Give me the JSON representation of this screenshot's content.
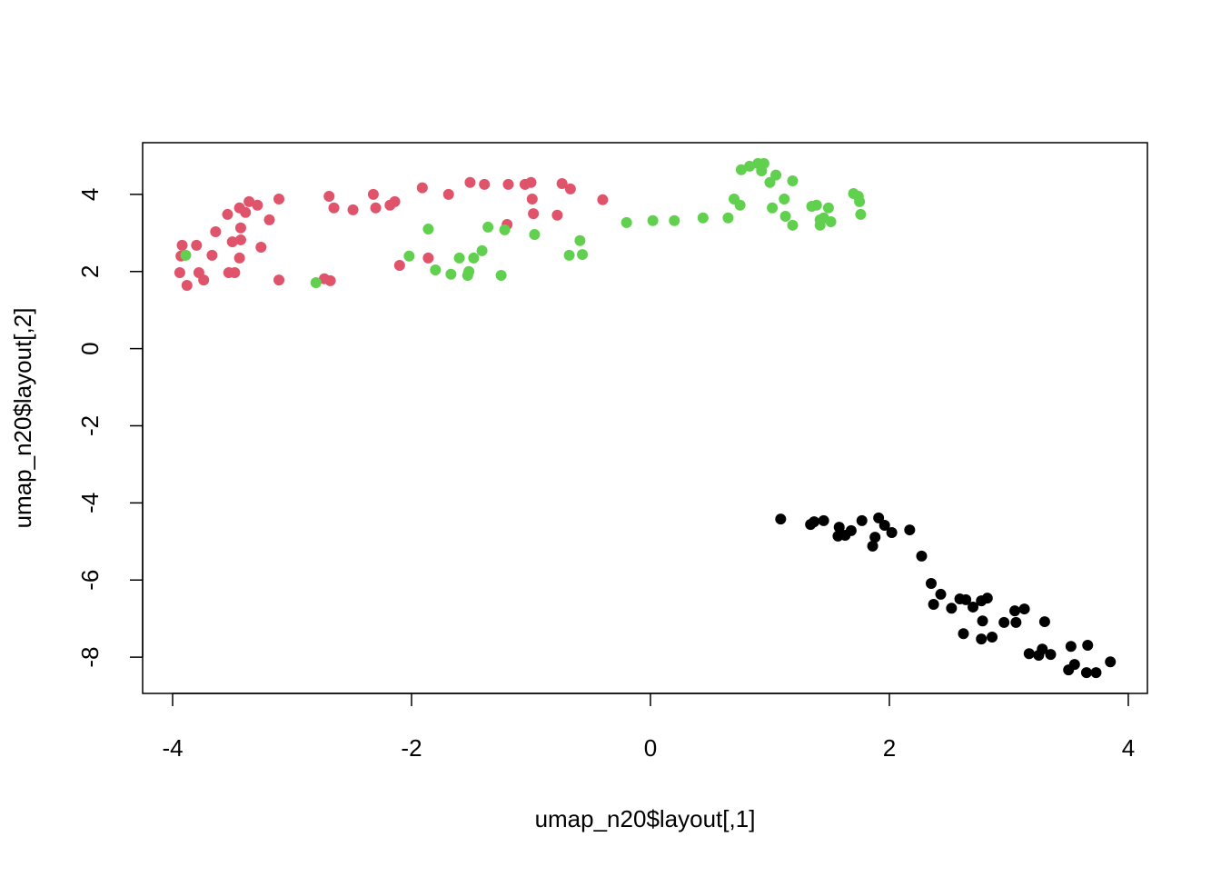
{
  "chart_data": {
    "type": "scatter",
    "x_label": "umap_n20$layout[,1]",
    "y_label": "umap_n20$layout[,2]",
    "xlim": [
      -4.251,
      4.16
    ],
    "ylim": [
      -8.94,
      5.34
    ],
    "xticks": [
      -4,
      -2,
      0,
      2,
      4
    ],
    "yticks": [
      -8,
      -6,
      -4,
      -2,
      0,
      2,
      4
    ],
    "series": [
      {
        "color": "#000000",
        "x": [
          1.09,
          1.34,
          1.37,
          1.45,
          1.58,
          1.57,
          1.63,
          1.68,
          1.77,
          1.91,
          1.96,
          1.88,
          1.86,
          2.02,
          2.17,
          2.27,
          2.35,
          2.43,
          2.37,
          2.52,
          2.59,
          2.64,
          2.7,
          2.77,
          2.82,
          2.62,
          2.78,
          2.77,
          2.86,
          2.96,
          3.06,
          3.05,
          3.13,
          3.3,
          3.17,
          3.25,
          3.28,
          3.35,
          3.52,
          3.5,
          3.55,
          3.66,
          3.65,
          3.73,
          3.85
        ],
        "y": [
          -4.42,
          -4.56,
          -4.49,
          -4.46,
          -4.63,
          -4.86,
          -4.84,
          -4.72,
          -4.46,
          -4.39,
          -4.58,
          -4.89,
          -5.12,
          -4.77,
          -4.7,
          -5.38,
          -6.09,
          -6.37,
          -6.63,
          -6.73,
          -6.49,
          -6.51,
          -6.7,
          -6.54,
          -6.47,
          -7.39,
          -7.06,
          -7.53,
          -7.48,
          -7.1,
          -7.1,
          -6.8,
          -6.75,
          -7.08,
          -7.91,
          -7.95,
          -7.79,
          -7.93,
          -7.72,
          -8.33,
          -8.19,
          -7.69,
          -8.4,
          -8.4,
          -8.12
        ]
      },
      {
        "color": "#DF536B",
        "x": [
          -3.93,
          -3.92,
          -3.94,
          -3.88,
          -3.8,
          -3.78,
          -3.74,
          -3.67,
          -3.64,
          -3.54,
          -3.53,
          -3.48,
          -3.5,
          -3.44,
          -3.43,
          -3.43,
          -3.44,
          -3.39,
          -3.36,
          -3.29,
          -3.26,
          -3.19,
          -3.11,
          -3.11,
          -2.73,
          -2.68,
          -2.69,
          -2.65,
          -2.49,
          -2.32,
          -2.3,
          -2.18,
          -2.14,
          -2.1,
          -1.91,
          -1.86,
          -1.69,
          -1.51,
          -1.39,
          -1.2,
          -1.19,
          -1.05,
          -1.0,
          -0.99,
          -0.98,
          -0.78,
          -0.74,
          -0.67,
          -0.4
        ],
        "y": [
          2.4,
          2.68,
          1.97,
          1.64,
          2.68,
          1.97,
          1.78,
          2.42,
          3.03,
          3.48,
          1.97,
          1.97,
          2.77,
          2.35,
          3.13,
          2.82,
          3.65,
          3.53,
          3.81,
          3.72,
          2.63,
          3.34,
          3.88,
          1.78,
          1.81,
          1.76,
          3.95,
          3.65,
          3.6,
          4.0,
          3.65,
          3.72,
          3.81,
          2.16,
          4.17,
          2.35,
          4.0,
          4.31,
          4.26,
          3.22,
          4.26,
          4.26,
          4.31,
          3.88,
          3.5,
          3.46,
          4.28,
          4.14,
          3.86
        ]
      },
      {
        "color": "#61D04F",
        "x": [
          -3.89,
          -2.8,
          -2.02,
          -1.86,
          -1.8,
          -1.67,
          -1.6,
          -1.52,
          -1.53,
          -1.48,
          -1.41,
          -1.36,
          -1.25,
          -1.22,
          -0.97,
          -0.68,
          -0.59,
          -0.57,
          -0.2,
          0.02,
          0.2,
          0.44,
          0.65,
          0.7,
          0.75,
          0.76,
          0.83,
          0.9,
          0.95,
          0.93,
          1.0,
          1.05,
          1.02,
          1.12,
          1.13,
          1.19,
          1.19,
          1.35,
          1.39,
          1.42,
          1.42,
          1.45,
          1.49,
          1.51,
          1.7,
          1.74,
          1.75,
          1.76
        ],
        "y": [
          2.42,
          1.71,
          2.4,
          3.1,
          2.04,
          1.93,
          2.35,
          2.0,
          1.9,
          2.35,
          2.54,
          3.15,
          1.9,
          3.08,
          2.96,
          2.42,
          2.8,
          2.44,
          3.27,
          3.32,
          3.32,
          3.39,
          3.39,
          3.88,
          3.72,
          4.64,
          4.73,
          4.8,
          4.8,
          4.61,
          4.31,
          4.5,
          3.65,
          3.88,
          3.43,
          4.35,
          3.2,
          3.69,
          3.72,
          3.34,
          3.2,
          3.39,
          3.65,
          3.29,
          4.02,
          3.95,
          3.81,
          3.48
        ]
      }
    ]
  }
}
